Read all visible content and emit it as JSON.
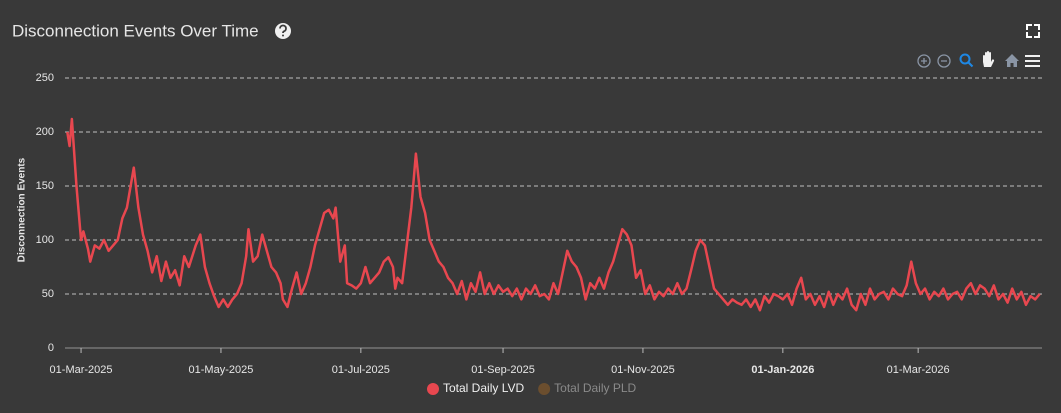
{
  "chart_data": {
    "type": "line",
    "title": "Disconnection Events Over Time",
    "ylabel": "Disconnection Events",
    "x": [
      "2025-02-23",
      "2025-02-24",
      "2025-02-25",
      "2025-02-27",
      "2025-03-01",
      "2025-03-02",
      "2025-03-04",
      "2025-03-05",
      "2025-03-07",
      "2025-03-09",
      "2025-03-11",
      "2025-03-13",
      "2025-03-15",
      "2025-03-17",
      "2025-03-19",
      "2025-03-21",
      "2025-03-24",
      "2025-03-26",
      "2025-03-28",
      "2025-03-30",
      "2025-04-01",
      "2025-04-03",
      "2025-04-05",
      "2025-04-07",
      "2025-04-09",
      "2025-04-11",
      "2025-04-13",
      "2025-04-15",
      "2025-04-17",
      "2025-04-20",
      "2025-04-22",
      "2025-04-24",
      "2025-04-26",
      "2025-04-28",
      "2025-04-30",
      "2025-05-02",
      "2025-05-04",
      "2025-05-06",
      "2025-05-08",
      "2025-05-10",
      "2025-05-12",
      "2025-05-13",
      "2025-05-15",
      "2025-05-17",
      "2025-05-19",
      "2025-05-21",
      "2025-05-23",
      "2025-05-25",
      "2025-05-27",
      "2025-05-28",
      "2025-05-30",
      "2025-06-01",
      "2025-06-03",
      "2025-06-05",
      "2025-06-07",
      "2025-06-09",
      "2025-06-11",
      "2025-06-13",
      "2025-06-15",
      "2025-06-17",
      "2025-06-19",
      "2025-06-20",
      "2025-06-22",
      "2025-06-24",
      "2025-06-25",
      "2025-06-27",
      "2025-06-29",
      "2025-07-01",
      "2025-07-03",
      "2025-07-05",
      "2025-07-07",
      "2025-07-09",
      "2025-07-11",
      "2025-07-13",
      "2025-07-15",
      "2025-07-16",
      "2025-07-17",
      "2025-07-19",
      "2025-07-21",
      "2025-07-23",
      "2025-07-25",
      "2025-07-27",
      "2025-07-29",
      "2025-07-31",
      "2025-08-02",
      "2025-08-04",
      "2025-08-06",
      "2025-08-08",
      "2025-08-10",
      "2025-08-12",
      "2025-08-14",
      "2025-08-16",
      "2025-08-18",
      "2025-08-20",
      "2025-08-22",
      "2025-08-24",
      "2025-08-26",
      "2025-08-28",
      "2025-08-30",
      "2025-09-01",
      "2025-09-03",
      "2025-09-05",
      "2025-09-07",
      "2025-09-09",
      "2025-09-11",
      "2025-09-13",
      "2025-09-15",
      "2025-09-17",
      "2025-09-19",
      "2025-09-21",
      "2025-09-23",
      "2025-09-25",
      "2025-09-27",
      "2025-09-29",
      "2025-10-01",
      "2025-10-03",
      "2025-10-05",
      "2025-10-07",
      "2025-10-09",
      "2025-10-11",
      "2025-10-13",
      "2025-10-15",
      "2025-10-17",
      "2025-10-19",
      "2025-10-21",
      "2025-10-23",
      "2025-10-25",
      "2025-10-27",
      "2025-10-29",
      "2025-10-31",
      "2025-11-02",
      "2025-11-04",
      "2025-11-06",
      "2025-11-08",
      "2025-11-10",
      "2025-11-12",
      "2025-11-14",
      "2025-11-16",
      "2025-11-18",
      "2025-11-20",
      "2025-11-22",
      "2025-11-24",
      "2025-11-26",
      "2025-11-28",
      "2025-11-30",
      "2025-12-02",
      "2025-12-04",
      "2025-12-06",
      "2025-12-08",
      "2025-12-10",
      "2025-12-12",
      "2025-12-14",
      "2025-12-16",
      "2025-12-18",
      "2025-12-20",
      "2025-12-22",
      "2025-12-24",
      "2025-12-26",
      "2025-12-28",
      "2025-12-30",
      "2026-01-01",
      "2026-01-03",
      "2026-01-05",
      "2026-01-07",
      "2026-01-09",
      "2026-01-11",
      "2026-01-13",
      "2026-01-15",
      "2026-01-17",
      "2026-01-19",
      "2026-01-21",
      "2026-01-23",
      "2026-01-25",
      "2026-01-27",
      "2026-01-29",
      "2026-01-31",
      "2026-02-02",
      "2026-02-04",
      "2026-02-06",
      "2026-02-08",
      "2026-02-10",
      "2026-02-12",
      "2026-02-14",
      "2026-02-16",
      "2026-02-18",
      "2026-02-20",
      "2026-02-22",
      "2026-02-24",
      "2026-02-26",
      "2026-02-28",
      "2026-03-02",
      "2026-03-04",
      "2026-03-06",
      "2026-03-08",
      "2026-03-10",
      "2026-03-12",
      "2026-03-14",
      "2026-03-16",
      "2026-03-18",
      "2026-03-20",
      "2026-03-22",
      "2026-03-24",
      "2026-03-26",
      "2026-03-28",
      "2026-03-30",
      "2026-04-01",
      "2026-04-03",
      "2026-04-05",
      "2026-04-07",
      "2026-04-09",
      "2026-04-11",
      "2026-04-13",
      "2026-04-15",
      "2026-04-17",
      "2026-04-19",
      "2026-04-21",
      "2026-04-23"
    ],
    "series": [
      {
        "name": "Total Daily LVD",
        "color": "#e8474f",
        "values": [
          200,
          187,
          212,
          150,
          100,
          108,
          92,
          80,
          95,
          92,
          100,
          90,
          95,
          100,
          120,
          130,
          167,
          130,
          105,
          90,
          70,
          85,
          62,
          80,
          65,
          72,
          58,
          85,
          75,
          95,
          105,
          75,
          60,
          48,
          38,
          45,
          38,
          45,
          50,
          60,
          85,
          110,
          80,
          85,
          105,
          90,
          75,
          70,
          60,
          45,
          38,
          55,
          70,
          50,
          60,
          75,
          95,
          110,
          125,
          128,
          120,
          130,
          80,
          95,
          60,
          58,
          55,
          60,
          75,
          60,
          65,
          70,
          80,
          84,
          75,
          55,
          65,
          60,
          95,
          130,
          180,
          140,
          125,
          100,
          90,
          80,
          75,
          65,
          60,
          50,
          62,
          45,
          60,
          52,
          70,
          50,
          60,
          50,
          58,
          52,
          55,
          48,
          55,
          45,
          55,
          50,
          58,
          48,
          50,
          45,
          60,
          50,
          70,
          90,
          80,
          75,
          65,
          45,
          60,
          55,
          65,
          55,
          70,
          80,
          95,
          110,
          105,
          95,
          65,
          72,
          50,
          58,
          45,
          52,
          48,
          55,
          50,
          60,
          50,
          55,
          72,
          90,
          100,
          95,
          75,
          55,
          50,
          45,
          40,
          45,
          42,
          40,
          45,
          38,
          45,
          35,
          48,
          42,
          50,
          48,
          45,
          50,
          40,
          55,
          65,
          45,
          50,
          40,
          48,
          38,
          52,
          40,
          50,
          45,
          55,
          40,
          35,
          50,
          40,
          55,
          45,
          50,
          52,
          45,
          55,
          50,
          48,
          58,
          80,
          60,
          50,
          55,
          45,
          52,
          48,
          55,
          45,
          50,
          52,
          45,
          55,
          60,
          50,
          58,
          55,
          48,
          58,
          45,
          50,
          42,
          55,
          45,
          52,
          40,
          48,
          45,
          50
        ]
      },
      {
        "name": "Total Daily PLD",
        "color": "#6b4e2e",
        "visible": false
      }
    ],
    "xlim": [
      "2025-02-22",
      "2026-04-24"
    ],
    "xticks": [
      {
        "value": "2025-03-01",
        "label": "01-Mar-2025"
      },
      {
        "value": "2025-05-01",
        "label": "01-May-2025"
      },
      {
        "value": "2025-07-01",
        "label": "01-Jul-2025"
      },
      {
        "value": "2025-09-01",
        "label": "01-Sep-2025"
      },
      {
        "value": "2025-11-01",
        "label": "01-Nov-2025"
      },
      {
        "value": "2026-01-01",
        "label": "01-Jan-2026"
      },
      {
        "value": "2026-03-01",
        "label": "01-Mar-2026"
      }
    ],
    "ylim": [
      0,
      250
    ],
    "yticks": [
      0,
      50,
      100,
      150,
      200,
      250
    ],
    "grid": true,
    "legend": "bottom"
  }
}
